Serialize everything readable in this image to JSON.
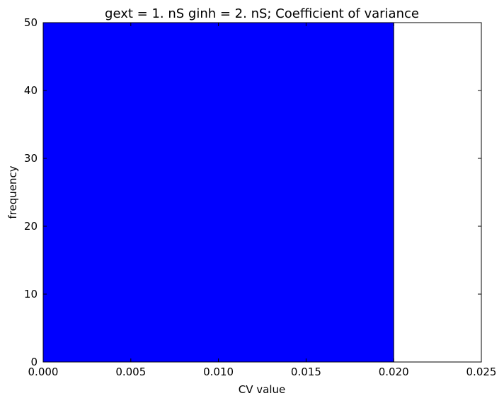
{
  "chart_data": {
    "type": "bar",
    "title": "gext = 1. nS ginh = 2. nS; Coefficient of variance",
    "xlabel": "CV value",
    "ylabel": "frequency",
    "xlim": [
      0.0,
      0.025
    ],
    "ylim": [
      0,
      50
    ],
    "x_ticks": [
      "0.000",
      "0.005",
      "0.010",
      "0.015",
      "0.020",
      "0.025"
    ],
    "y_ticks": [
      "0",
      "10",
      "20",
      "30",
      "40",
      "50"
    ],
    "bins": [
      {
        "x_start": 0.0,
        "x_end": 0.02,
        "value": 50
      }
    ],
    "bar_color": "#0000ff",
    "grid": false,
    "legend": "none"
  }
}
